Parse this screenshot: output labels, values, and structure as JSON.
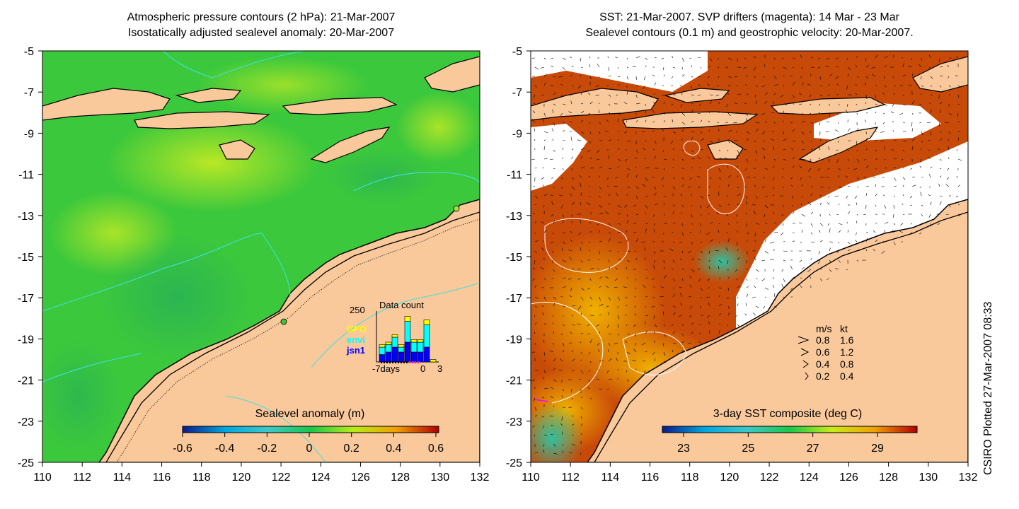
{
  "left_panel": {
    "title_line1": "Atmospheric pressure contours (2 hPa): 21-Mar-2007",
    "title_line2": "Isostatically adjusted sealevel anomaly: 20-Mar-2007",
    "x_ticks": [
      "110",
      "112",
      "114",
      "116",
      "118",
      "120",
      "122",
      "124",
      "126",
      "128",
      "130",
      "132"
    ],
    "y_ticks": [
      "-5",
      "-7",
      "-9",
      "-11",
      "-13",
      "-15",
      "-17",
      "-19",
      "-21",
      "-23",
      "-25"
    ],
    "colorbar": {
      "title": "Sealevel anomaly (m)",
      "ticks": [
        "-0.6",
        "-0.4",
        "-0.2",
        "0",
        "0.2",
        "0.4",
        "0.6"
      ],
      "colors": [
        "#0a1a8c",
        "#00a8e0",
        "#3cc8c8",
        "#18c84c",
        "#b8ec18",
        "#f0a000",
        "#b00000"
      ]
    },
    "inset": {
      "title": "Data count",
      "max_label": "250",
      "x_min_label": "-7days",
      "x_zero_label": "0",
      "x_max_label": "3",
      "legend": [
        {
          "label": "GFO",
          "color": "#ffff00"
        },
        {
          "label": "envi",
          "color": "#00ffff"
        },
        {
          "label": "jsn1",
          "color": "#0000ff"
        }
      ],
      "bars": [
        {
          "jsn1": 0.15,
          "envi": 0.15,
          "gfo": 0.05
        },
        {
          "jsn1": 0.2,
          "envi": 0.15,
          "gfo": 0.05
        },
        {
          "jsn1": 0.3,
          "envi": 0.2,
          "gfo": 0.05
        },
        {
          "jsn1": 0.2,
          "envi": 0.1,
          "gfo": 0.05
        },
        {
          "jsn1": 0.4,
          "envi": 0.42,
          "gfo": 0.1
        },
        {
          "jsn1": 0.2,
          "envi": 0.2,
          "gfo": 0.05
        },
        {
          "jsn1": 0.2,
          "envi": 0.2,
          "gfo": 0.05
        },
        {
          "jsn1": 0.3,
          "envi": 0.45,
          "gfo": 0.1
        },
        {
          "jsn1": 0.0,
          "envi": 0.0,
          "gfo": 0.05
        }
      ]
    }
  },
  "right_panel": {
    "title_line1": "SST: 21-Mar-2007. SVP drifters (magenta): 14 Mar - 23 Mar",
    "title_line2": "Sealevel contours (0.1 m) and geostrophic velocity: 20-Mar-2007.",
    "x_ticks": [
      "110",
      "112",
      "114",
      "116",
      "118",
      "120",
      "122",
      "124",
      "126",
      "128",
      "130",
      "132"
    ],
    "y_ticks": [
      "-5",
      "-7",
      "-9",
      "-11",
      "-13",
      "-15",
      "-17",
      "-19",
      "-21",
      "-23",
      "-25"
    ],
    "colorbar": {
      "title": "3-day SST composite (deg C)",
      "ticks": [
        "23",
        "25",
        "27",
        "29"
      ],
      "colors": [
        "#0a1a8c",
        "#00a8e0",
        "#3cc8c8",
        "#18c84c",
        "#c8ec18",
        "#f0a000",
        "#b00000"
      ]
    },
    "speed_legend": {
      "header_ms": "m/s",
      "header_kt": "kt",
      "rows": [
        {
          "ms": "0.8",
          "kt": "1.6"
        },
        {
          "ms": "0.6",
          "kt": "1.2"
        },
        {
          "ms": "0.4",
          "kt": "0.8"
        },
        {
          "ms": "0.2",
          "kt": "0.4"
        }
      ]
    }
  },
  "credit": "CSIRO Plotted 27-Mar-2007 08:33",
  "colors": {
    "land": "#f9c89b",
    "ocean_left": "#3cc83c",
    "ocean_right": "#c84a08",
    "pressure_contour": "#40e0e0"
  }
}
